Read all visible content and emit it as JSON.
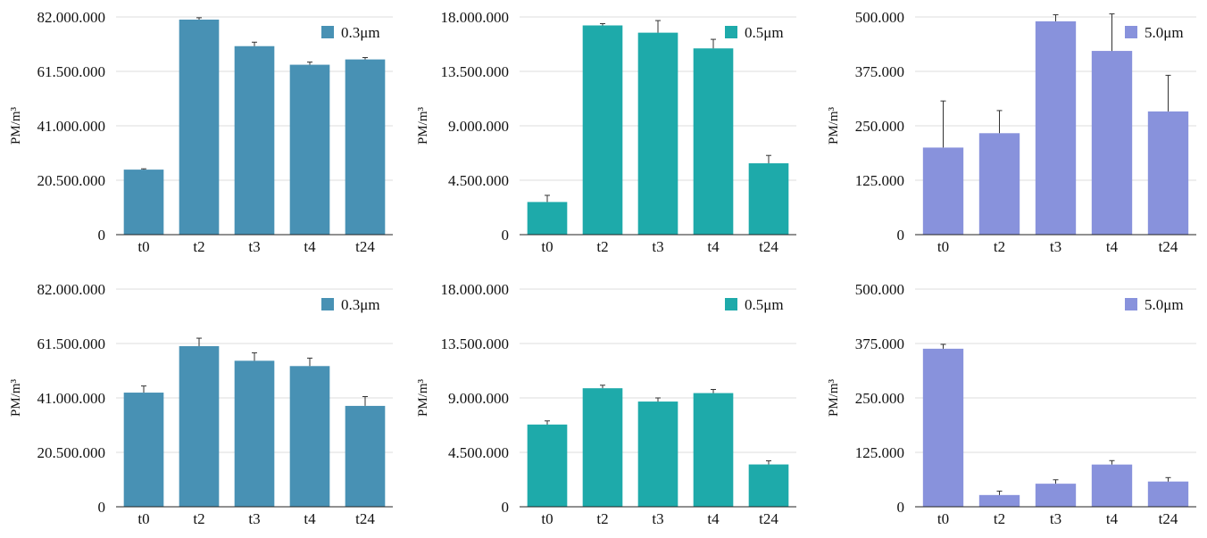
{
  "colors": {
    "0.3": "#4891b4",
    "0.5": "#1eaaaa",
    "5.0": "#8892dc",
    "grid": "#dddddd",
    "axis": "#222222",
    "errorbar": "#333333"
  },
  "chart_data": [
    {
      "type": "bar",
      "ylabel": "PM/m³",
      "ylim": [
        0,
        82000000
      ],
      "yticks": [
        "0",
        "20.500.000",
        "41.000.000",
        "61.500.000",
        "82.000.000"
      ],
      "categories": [
        "t0",
        "t2",
        "t3",
        "t4",
        "t24"
      ],
      "legend": "0.3μm",
      "legend_position": "top-right",
      "grid": true,
      "color_key": "0.3",
      "values": [
        24500000,
        81000000,
        71000000,
        64000000,
        66000000
      ],
      "errors": [
        300000,
        700000,
        1500000,
        1000000,
        700000
      ]
    },
    {
      "type": "bar",
      "ylabel": "PM/m³",
      "ylim": [
        0,
        18000000
      ],
      "yticks": [
        "0",
        "4.500.000",
        "9.000.000",
        "13.500.000",
        "18.000.000"
      ],
      "categories": [
        "t0",
        "t2",
        "t3",
        "t4",
        "t24"
      ],
      "legend": "0.5μm",
      "legend_position": "top-right",
      "grid": true,
      "color_key": "0.5",
      "values": [
        2700000,
        17300000,
        16700000,
        15400000,
        5900000
      ],
      "errors": [
        550000,
        150000,
        1000000,
        750000,
        650000
      ]
    },
    {
      "type": "bar",
      "ylabel": "PM/m³",
      "ylim": [
        0,
        500000
      ],
      "yticks": [
        "0",
        "125.000",
        "250.000",
        "375.000",
        "500.000"
      ],
      "categories": [
        "t0",
        "t2",
        "t3",
        "t4",
        "t24"
      ],
      "legend": "5.0μm",
      "legend_position": "top-right",
      "grid": true,
      "color_key": "5.0",
      "values": [
        200000,
        233000,
        490000,
        422000,
        283000
      ],
      "errors": [
        107000,
        52000,
        15000,
        85000,
        83000
      ]
    },
    {
      "type": "bar",
      "ylabel": "PM/m³",
      "ylim": [
        0,
        82000000
      ],
      "yticks": [
        "0",
        "20.500.000",
        "41.000.000",
        "61.500.000",
        "82.000.000"
      ],
      "categories": [
        "t0",
        "t2",
        "t3",
        "t4",
        "t24"
      ],
      "legend": "0.3μm",
      "legend_position": "top-right",
      "grid": true,
      "color_key": "0.3",
      "values": [
        43000000,
        60500000,
        55000000,
        53000000,
        38000000
      ],
      "errors": [
        2500000,
        3000000,
        3000000,
        3000000,
        3500000
      ]
    },
    {
      "type": "bar",
      "ylabel": "PM/m³",
      "ylim": [
        0,
        18000000
      ],
      "yticks": [
        "0",
        "4.500.000",
        "9.000.000",
        "13.500.000",
        "18.000.000"
      ],
      "categories": [
        "t0",
        "t2",
        "t3",
        "t4",
        "t24"
      ],
      "legend": "0.5μm",
      "legend_position": "top-right",
      "grid": true,
      "color_key": "0.5",
      "values": [
        6800000,
        9800000,
        8700000,
        9400000,
        3500000
      ],
      "errors": [
        300000,
        250000,
        300000,
        300000,
        300000
      ]
    },
    {
      "type": "bar",
      "ylabel": "PM/m³",
      "ylim": [
        0,
        500000
      ],
      "yticks": [
        "0",
        "125.000",
        "250.000",
        "375.000",
        "500.000"
      ],
      "categories": [
        "t0",
        "t2",
        "t3",
        "t4",
        "t24"
      ],
      "legend": "5.0μm",
      "legend_position": "top-right",
      "grid": true,
      "color_key": "5.0",
      "values": [
        363000,
        27000,
        53000,
        97000,
        58000
      ],
      "errors": [
        10000,
        9000,
        9000,
        9000,
        9000
      ]
    }
  ]
}
